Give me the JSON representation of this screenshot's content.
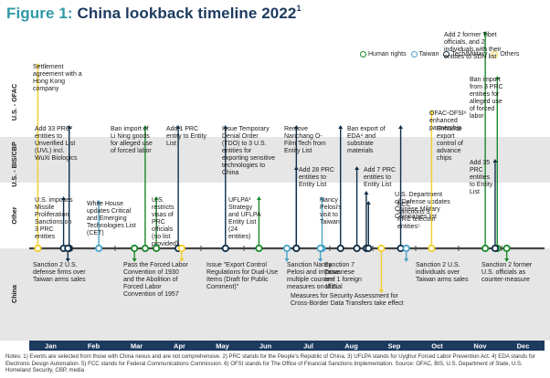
{
  "title": {
    "figure": "Figure 1:",
    "text": "China lookback timeline 2022",
    "sup": "1"
  },
  "colors": {
    "human_rights": "#1b8a2a",
    "taiwan": "#4aa3c9",
    "tech_military": "#0f2f4a",
    "others": "#f2cf2a",
    "band_shade": "#e6e6e6",
    "month_bar": "#1d3a5f",
    "figure_accent": "#2f9aa6"
  },
  "legend": [
    {
      "key": "human_rights",
      "label": "Human rights"
    },
    {
      "key": "taiwan",
      "label": "Taiwan"
    },
    {
      "key": "tech_military",
      "label": "Tech/Military"
    },
    {
      "key": "others",
      "label": "Others"
    }
  ],
  "bands": [
    "U.S. - OFAC",
    "U.S. - BIS/CBP",
    "Other",
    "China"
  ],
  "months": [
    "Jan",
    "Feb",
    "Mar",
    "Apr",
    "May",
    "Jun",
    "Jul",
    "Aug",
    "Sep",
    "Oct",
    "Nov",
    "Dec"
  ],
  "events": [
    {
      "cat": "others",
      "pos": 0.2,
      "side": "up",
      "lines": [
        "Settlement",
        "agreement with a",
        "Hong Kong",
        "company"
      ]
    },
    {
      "cat": "tech_military",
      "pos": 0.93,
      "side": "up",
      "lines": [
        "Add 33 PRC²",
        "entities to",
        "Unverified List",
        "(UVL) incl.",
        "WuXi Biologics"
      ]
    },
    {
      "cat": "tech_military",
      "pos": 0.8,
      "side": "up",
      "lines": [
        "U.S. imposes",
        "Missile",
        "Proliferation",
        "Sanctions on",
        "3 PRC",
        "entities"
      ]
    },
    {
      "cat": "taiwan",
      "pos": 1.62,
      "side": "up",
      "lines": [
        "White House",
        "updates Critical",
        "and Emerging",
        "Technologies List",
        "(CET)"
      ]
    },
    {
      "cat": "human_rights",
      "pos": 2.7,
      "side": "up",
      "lines": [
        "Ban import of",
        "Li Ning goods",
        "for alleged use",
        "of forced labor"
      ]
    },
    {
      "cat": "tech_military",
      "pos": 3.47,
      "side": "up",
      "lines": [
        "Add 1 PRC",
        "entity to Entity",
        "List"
      ]
    },
    {
      "cat": "human_rights",
      "pos": 2.96,
      "side": "up",
      "lines": [
        "U.S.",
        "restricts",
        "visas of",
        "PRC",
        "officials",
        "(no list",
        "provided)"
      ]
    },
    {
      "cat": "tech_military",
      "pos": 4.57,
      "side": "up",
      "lines": [
        "Issue Temporary",
        "Denial Order",
        "(TDO) to 3 U.S.",
        "entities for",
        "exporting sensitive",
        "technologies to",
        "China"
      ]
    },
    {
      "cat": "human_rights",
      "pos": 5.35,
      "side": "up",
      "lines": [
        "UFLPA³",
        "Strategy",
        "and UFLPA",
        "Entity List",
        "(24",
        "entities)"
      ]
    },
    {
      "cat": "tech_military",
      "pos": 6.22,
      "side": "up",
      "lines": [
        "Remove",
        "Nanchang O-",
        "Film Tech from",
        "Entity List"
      ]
    },
    {
      "cat": "tech_military",
      "pos": 6.22,
      "side": "up",
      "lines": [
        "Add 28 PRC",
        "entities to",
        "Entity List"
      ]
    },
    {
      "cat": "taiwan",
      "pos": 6.82,
      "side": "up",
      "lines": [
        "Nancy",
        "Pelosi's",
        "visit to",
        "Taiwan"
      ]
    },
    {
      "cat": "tech_military",
      "pos": 7.25,
      "side": "up",
      "lines": [
        "Ban export of",
        "EDA⁴ and",
        "substrate",
        "materials"
      ]
    },
    {
      "cat": "tech_military",
      "pos": 7.63,
      "side": "up",
      "lines": [
        "Add 7 PRC",
        "entities to",
        "Entity List"
      ]
    },
    {
      "cat": "tech_military",
      "pos": 7.85,
      "side": "up",
      "lines": [
        "U.S. Department",
        "of Defense updates",
        "Chinese Military",
        "Companies list"
      ]
    },
    {
      "cat": "tech_military",
      "pos": 7.9,
      "side": "up",
      "lines": [
        "FCC",
        "sanctions 3",
        "PRC telecom",
        "entities⁵"
      ]
    },
    {
      "cat": "tech_military",
      "pos": 8.65,
      "side": "up",
      "lines": [
        "Enhance",
        "export",
        "control of",
        "advance",
        "chips"
      ]
    },
    {
      "cat": "others",
      "pos": 9.37,
      "side": "up",
      "lines": [
        "OFAC-OFSI⁶",
        "enhanced",
        "partnership"
      ]
    },
    {
      "cat": "human_rights",
      "pos": 10.62,
      "side": "up",
      "lines": [
        "Add 2 former Tibet",
        "officials, and 2",
        "individuals with their",
        "entities to SDN list"
      ]
    },
    {
      "cat": "human_rights",
      "pos": 10.9,
      "side": "up",
      "lines": [
        "Ban import",
        "from 3 PRC",
        "entities for",
        "alleged use",
        "of forced",
        "labor"
      ]
    },
    {
      "cat": "tech_military",
      "pos": 10.85,
      "side": "up",
      "lines": [
        "Add 35",
        "PRC",
        "entities",
        "to Entity",
        "List"
      ]
    },
    {
      "cat": "tech_military",
      "pos": 0.9,
      "side": "down",
      "lines": [
        "Sanction 2 U.S.",
        "defense firms over",
        "Taiwan arms sales"
      ]
    },
    {
      "cat": "human_rights",
      "pos": 2.45,
      "side": "down",
      "lines": [
        "Pass the Forced Labor",
        "Convention of 1930",
        "and the Abolition of",
        "Forced Labor",
        "Convention of 1957"
      ]
    },
    {
      "cat": "others",
      "pos": 3.55,
      "side": "down",
      "lines": [
        "Issue \"Export Control",
        "Regulations for Dual-Use",
        "Items (Draft for Public",
        "Comment)\""
      ]
    },
    {
      "cat": "taiwan",
      "pos": 6.0,
      "side": "down",
      "lines": [
        "Sanction Nancy",
        "Pelosi and impose",
        "multiple counter-",
        "measures on U.S."
      ]
    },
    {
      "cat": "taiwan",
      "pos": 6.78,
      "side": "down",
      "lines": [
        "Sanction 7",
        "Taiwanese",
        "and 1 foreign",
        "official"
      ]
    },
    {
      "cat": "others",
      "pos": 8.2,
      "side": "down",
      "lines": [
        "Measures for Security Assessment for",
        "Cross-Border Data Transfers take effect"
      ]
    },
    {
      "cat": "taiwan",
      "pos": 8.78,
      "side": "down",
      "lines": [
        "Sanction 2 U.S.",
        "individuals over",
        "Taiwan arms sales"
      ]
    },
    {
      "cat": "human_rights",
      "pos": 11.12,
      "side": "down",
      "lines": [
        "Sanction 2 former",
        "U.S. officials as",
        "counter-measure"
      ]
    }
  ],
  "notes": "Notes: 1) Events are selected from those with China nexus and are not comprehensive. 2) PRC stands for the People's Republic of China. 3) UFLPA stands for Uyghur Forced Labor Prevention Act. 4) EDA stands for Electronic Design Automation. 5) FCC stands for Federal Communications Commission. 6) OFSI stands for The Office of Financial Sanctions Implementation. Source: OFAC, BIS, U.S. Department of State, U.S. Homeland Security, CBP, media"
}
